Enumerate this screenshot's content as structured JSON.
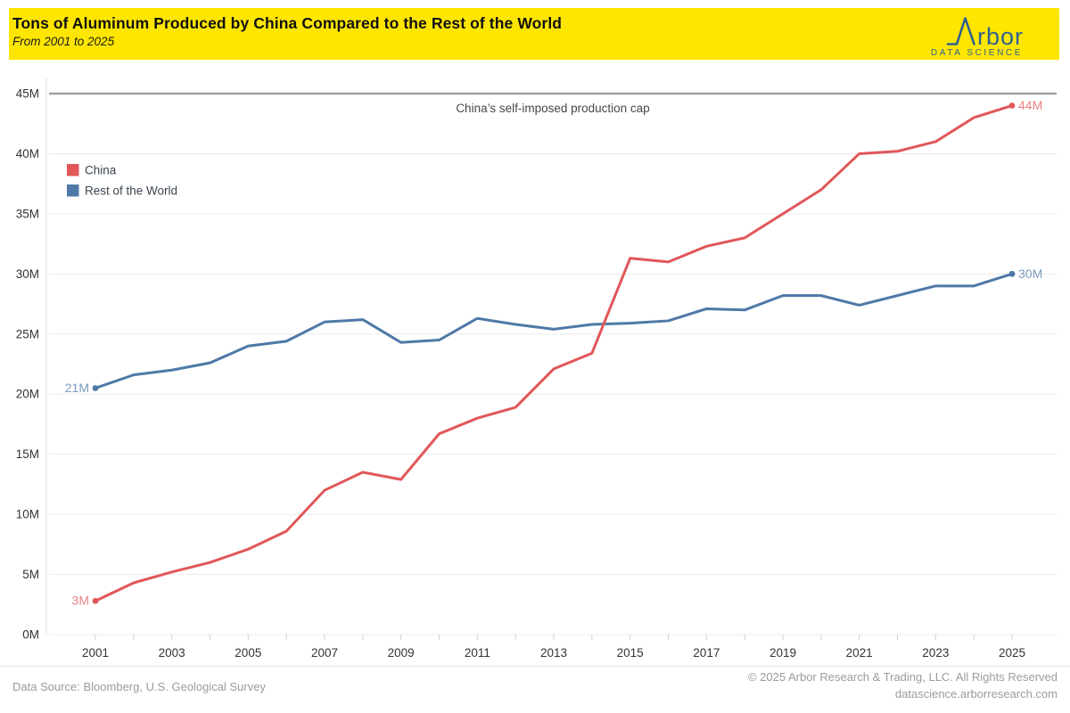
{
  "header": {
    "title": "Tons of Aluminum Produced by China Compared to the Rest of the World",
    "subtitle": "From 2001 to 2025",
    "banner_color": "#FFE600",
    "logo": {
      "brand": "Arbor",
      "display_text": "rbor",
      "tagline": "DATA SCIENCE",
      "color": "#2E6191"
    }
  },
  "chart_data": {
    "type": "line",
    "title": "Tons of Aluminum Produced by China Compared to the Rest of the World",
    "subtitle": "From 2001 to 2025",
    "x": [
      2001,
      2002,
      2003,
      2004,
      2005,
      2006,
      2007,
      2008,
      2009,
      2010,
      2011,
      2012,
      2013,
      2014,
      2015,
      2016,
      2017,
      2018,
      2019,
      2020,
      2021,
      2022,
      2023,
      2024,
      2025
    ],
    "x_tick_labels": [
      "2001",
      "2003",
      "2005",
      "2007",
      "2009",
      "2011",
      "2013",
      "2015",
      "2017",
      "2019",
      "2021",
      "2023",
      "2025"
    ],
    "y_tick_values": [
      0,
      5,
      10,
      15,
      20,
      25,
      30,
      35,
      40,
      45
    ],
    "y_tick_labels": [
      "0M",
      "5M",
      "10M",
      "15M",
      "20M",
      "25M",
      "30M",
      "35M",
      "40M",
      "45M"
    ],
    "ylim": [
      0,
      45
    ],
    "units": "millions of tons",
    "grid": "horizontal",
    "legend_position": "top-left",
    "series": [
      {
        "name": "China",
        "color": "#E15759",
        "start_label": "3M",
        "end_label": "44M",
        "values": [
          2.8,
          4.3,
          5.2,
          6.0,
          7.1,
          8.6,
          12.0,
          13.5,
          12.9,
          16.7,
          18.0,
          18.9,
          22.1,
          23.4,
          31.3,
          31.0,
          32.3,
          33.0,
          35.0,
          37.0,
          40.0,
          40.2,
          41.0,
          43.0,
          44.0
        ]
      },
      {
        "name": "Rest of the World",
        "color": "#4E79A7",
        "start_label": "21M",
        "end_label": "30M",
        "values": [
          20.5,
          21.6,
          22.0,
          22.6,
          24.0,
          24.4,
          26.0,
          26.2,
          24.3,
          24.5,
          26.3,
          25.8,
          25.4,
          25.8,
          25.9,
          26.1,
          27.1,
          27.0,
          28.2,
          28.2,
          27.4,
          28.2,
          29.0,
          29.0,
          30.0
        ]
      }
    ],
    "reference_line": {
      "value": 45,
      "color": "#A0A0A0",
      "annotation": "China’s self-imposed production cap"
    }
  },
  "footer": {
    "source": "Data Source: Bloomberg, U.S. Geological Survey",
    "copyright": "© 2025 Arbor Research & Trading, LLC. All Rights Reserved",
    "website": "datascience.arborresearch.com"
  }
}
